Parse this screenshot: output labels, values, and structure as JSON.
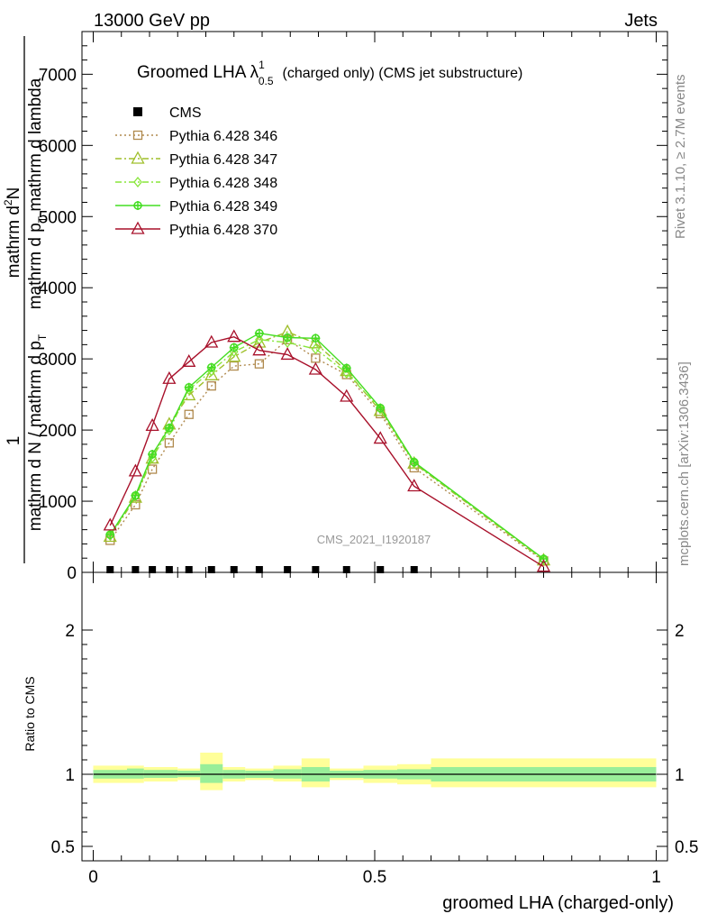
{
  "header": {
    "left": "13000 GeV pp",
    "right": "Jets"
  },
  "side_labels": {
    "rivet": "Rivet 3.1.10, ≥ 2.7M events",
    "mcplots": "mcplots.cern.ch [arXiv:1306.3436]"
  },
  "watermark": "CMS_2021_I1920187",
  "chart_data": {
    "type": "line",
    "title": {
      "main": "Groomed LHA λ",
      "sup": "1",
      "sub": "0.5",
      "rest": "(charged only) (CMS jet substructure)"
    },
    "ylabel": {
      "line1": "mathrm d",
      "line1_sup": "2",
      "line1_end": "N",
      "line2_a": "mathrm d p",
      "line2_sub": "T",
      "line2_b": " mathrm d lambda",
      "den_a": "mathrm d N / mathrm d p",
      "den_sub": "T",
      "one": "1"
    },
    "xlabel": "groomed LHA (charged-only)",
    "ratio_ylabel": "Ratio to CMS",
    "xlim": [
      -0.02,
      1.02
    ],
    "ylim": [
      0,
      7600
    ],
    "ratio_ylim": [
      0.4,
      2.4
    ],
    "x_ticks": [
      {
        "v": 0,
        "label": "0"
      },
      {
        "v": 0.5,
        "label": "0.5"
      },
      {
        "v": 1,
        "label": "1"
      }
    ],
    "y_ticks": [
      {
        "v": 0,
        "label": "0"
      },
      {
        "v": 1000,
        "label": "1000"
      },
      {
        "v": 2000,
        "label": "2000"
      },
      {
        "v": 3000,
        "label": "3000"
      },
      {
        "v": 4000,
        "label": "4000"
      },
      {
        "v": 5000,
        "label": "5000"
      },
      {
        "v": 6000,
        "label": "6000"
      },
      {
        "v": 7000,
        "label": "7000"
      }
    ],
    "ratio_ticks": [
      {
        "v": 0.5,
        "label": "0.5"
      },
      {
        "v": 1,
        "label": "1"
      },
      {
        "v": 2,
        "label": "2"
      }
    ],
    "cms": {
      "name": "CMS",
      "x": [
        0.03,
        0.075,
        0.105,
        0.135,
        0.17,
        0.21,
        0.25,
        0.295,
        0.345,
        0.395,
        0.45,
        0.51,
        0.57
      ],
      "y": [
        0,
        0,
        0,
        0,
        0,
        0,
        0,
        0,
        0,
        0,
        0,
        0,
        0
      ]
    },
    "ratio_bands": [
      {
        "x0": 0.0,
        "x1": 0.06,
        "inner": [
          0.97,
          1.03
        ],
        "outer": [
          0.94,
          1.06
        ]
      },
      {
        "x0": 0.06,
        "x1": 0.09,
        "inner": [
          0.97,
          1.04
        ],
        "outer": [
          0.94,
          1.06
        ]
      },
      {
        "x0": 0.09,
        "x1": 0.12,
        "inner": [
          0.975,
          1.03
        ],
        "outer": [
          0.95,
          1.05
        ]
      },
      {
        "x0": 0.12,
        "x1": 0.15,
        "inner": [
          0.975,
          1.03
        ],
        "outer": [
          0.95,
          1.05
        ]
      },
      {
        "x0": 0.15,
        "x1": 0.19,
        "inner": [
          0.98,
          1.025
        ],
        "outer": [
          0.96,
          1.04
        ]
      },
      {
        "x0": 0.19,
        "x1": 0.23,
        "inner": [
          0.94,
          1.07
        ],
        "outer": [
          0.89,
          1.15
        ]
      },
      {
        "x0": 0.23,
        "x1": 0.27,
        "inner": [
          0.97,
          1.03
        ],
        "outer": [
          0.95,
          1.05
        ]
      },
      {
        "x0": 0.27,
        "x1": 0.32,
        "inner": [
          0.975,
          1.025
        ],
        "outer": [
          0.96,
          1.04
        ]
      },
      {
        "x0": 0.32,
        "x1": 0.37,
        "inner": [
          0.97,
          1.035
        ],
        "outer": [
          0.95,
          1.06
        ]
      },
      {
        "x0": 0.37,
        "x1": 0.42,
        "inner": [
          0.95,
          1.05
        ],
        "outer": [
          0.91,
          1.11
        ]
      },
      {
        "x0": 0.42,
        "x1": 0.48,
        "inner": [
          0.975,
          1.025
        ],
        "outer": [
          0.96,
          1.04
        ]
      },
      {
        "x0": 0.48,
        "x1": 0.54,
        "inner": [
          0.97,
          1.03
        ],
        "outer": [
          0.94,
          1.06
        ]
      },
      {
        "x0": 0.54,
        "x1": 0.6,
        "inner": [
          0.965,
          1.035
        ],
        "outer": [
          0.93,
          1.07
        ]
      },
      {
        "x0": 0.6,
        "x1": 1.0,
        "inner": [
          0.95,
          1.05
        ],
        "outer": [
          0.91,
          1.11
        ]
      }
    ],
    "series": [
      {
        "name": "Pythia 6.428 346",
        "color": "#b08a4e",
        "marker": "square",
        "dash": "2,3",
        "x": [
          0.03,
          0.075,
          0.105,
          0.135,
          0.17,
          0.21,
          0.25,
          0.295,
          0.345,
          0.395,
          0.45,
          0.51,
          0.57,
          0.8
        ],
        "y": [
          450,
          950,
          1450,
          1820,
          2220,
          2620,
          2900,
          2930,
          3270,
          3010,
          2780,
          2230,
          1470,
          160
        ]
      },
      {
        "name": "Pythia 6.428 347",
        "color": "#9fbf2a",
        "marker": "triangle",
        "dash": "7,3,2,3",
        "x": [
          0.03,
          0.075,
          0.105,
          0.135,
          0.17,
          0.21,
          0.25,
          0.295,
          0.345,
          0.395,
          0.45,
          0.51,
          0.57,
          0.8
        ],
        "y": [
          500,
          1050,
          1600,
          2080,
          2490,
          2770,
          3030,
          3230,
          3380,
          3220,
          2830,
          2270,
          1530,
          170
        ]
      },
      {
        "name": "Pythia 6.428 348",
        "color": "#88e63a",
        "marker": "diamond",
        "dash": "7,3,2,3",
        "x": [
          0.03,
          0.075,
          0.105,
          0.135,
          0.17,
          0.21,
          0.25,
          0.295,
          0.345,
          0.395,
          0.45,
          0.51,
          0.57,
          0.8
        ],
        "y": [
          520,
          1070,
          1610,
          2000,
          2570,
          2830,
          3100,
          3270,
          3230,
          3140,
          2800,
          2300,
          1540,
          180
        ]
      },
      {
        "name": "Pythia 6.428 349",
        "color": "#44dd22",
        "marker": "cross",
        "dash": "",
        "x": [
          0.03,
          0.075,
          0.105,
          0.135,
          0.17,
          0.21,
          0.25,
          0.295,
          0.345,
          0.395,
          0.45,
          0.51,
          0.57,
          0.8
        ],
        "y": [
          530,
          1080,
          1660,
          2030,
          2600,
          2880,
          3160,
          3360,
          3300,
          3290,
          2870,
          2310,
          1550,
          190
        ]
      },
      {
        "name": "Pythia 6.428 370",
        "color": "#a8102a",
        "marker": "triangle",
        "dash": "",
        "x": [
          0.03,
          0.075,
          0.105,
          0.135,
          0.17,
          0.21,
          0.25,
          0.295,
          0.345,
          0.395,
          0.45,
          0.51,
          0.57,
          0.8
        ],
        "y": [
          660,
          1420,
          2060,
          2720,
          2960,
          3230,
          3310,
          3120,
          3060,
          2850,
          2470,
          1880,
          1210,
          80
        ]
      }
    ]
  }
}
